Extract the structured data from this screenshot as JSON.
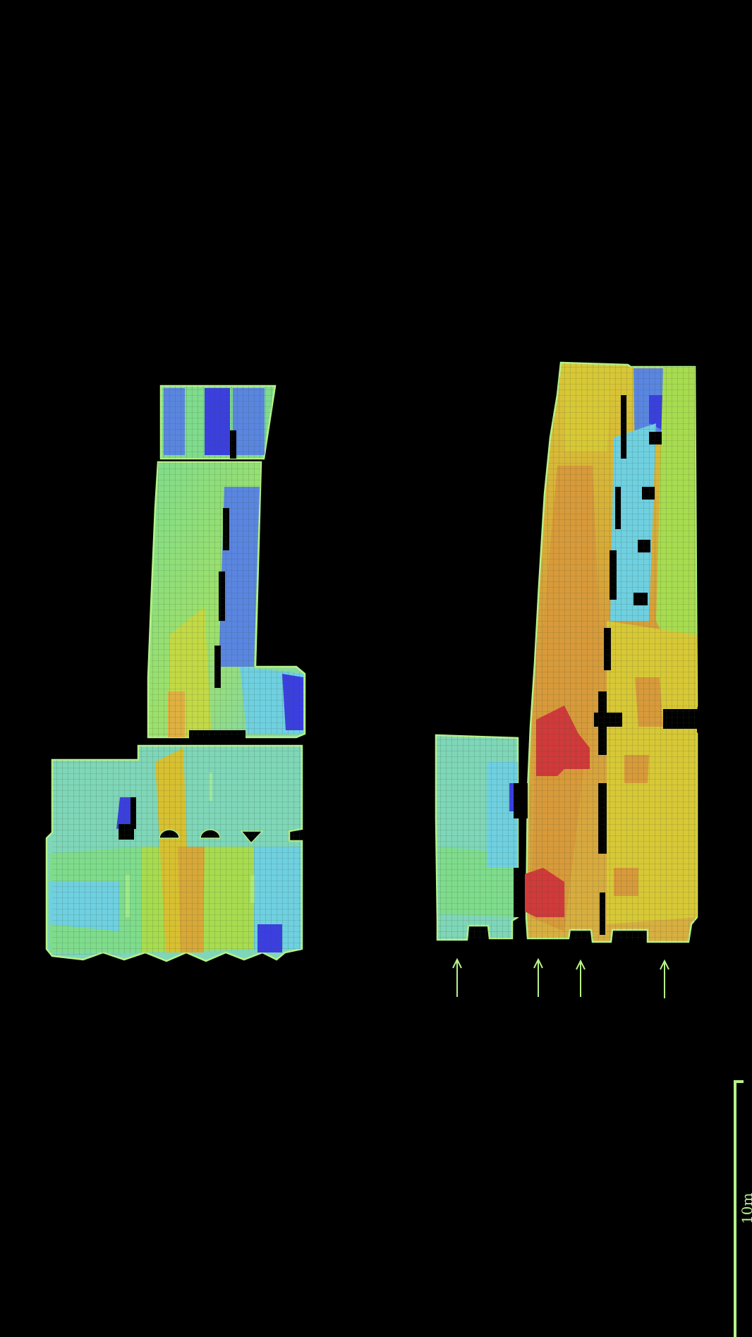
{
  "scale_bar": {
    "label": "10m"
  },
  "colors": {
    "background": "#000000",
    "outline": "#b6f28a",
    "grid": "#3c5a3c",
    "heatmap_low": "#3b3fe0",
    "heatmap_mid_low": "#6fd0e0",
    "heatmap_mid": "#7fdc8c",
    "heatmap_mid_high": "#d8d030",
    "heatmap_high": "#d03a3a"
  },
  "plans": [
    {
      "name": "plan-left",
      "arrows": 0
    },
    {
      "name": "plan-right",
      "arrows": 4
    }
  ]
}
